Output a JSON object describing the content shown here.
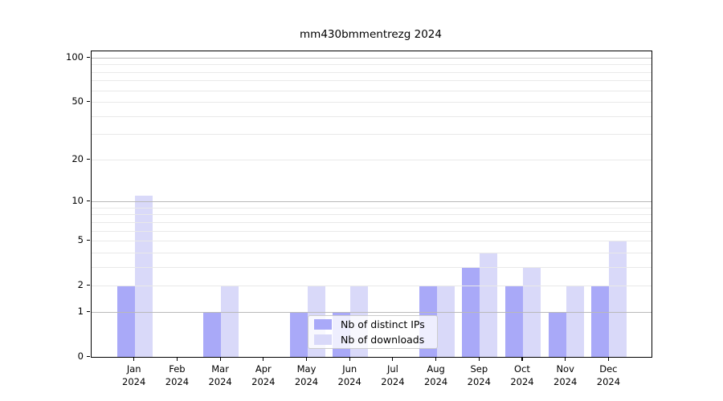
{
  "title": "mm430bmmentrezg 2024",
  "legend": {
    "items": [
      {
        "label": "Nb of distinct IPs",
        "color": "#a9a9f8"
      },
      {
        "label": "Nb of downloads",
        "color": "#d9d9f9"
      }
    ]
  },
  "y_axis": {
    "tick_values": [
      0,
      1,
      2,
      5,
      10,
      20,
      50,
      100
    ],
    "tick_labels": [
      "0",
      "1",
      "2",
      "5",
      "10",
      "20",
      "50",
      "100"
    ]
  },
  "x_axis": {
    "months": [
      "Jan",
      "Feb",
      "Mar",
      "Apr",
      "May",
      "Jun",
      "Jul",
      "Aug",
      "Sep",
      "Oct",
      "Nov",
      "Dec"
    ],
    "year": "2024"
  },
  "chart_data": {
    "type": "bar",
    "title": "mm430bmmentrezg 2024",
    "categories": [
      "Jan 2024",
      "Feb 2024",
      "Mar 2024",
      "Apr 2024",
      "May 2024",
      "Jun 2024",
      "Jul 2024",
      "Aug 2024",
      "Sep 2024",
      "Oct 2024",
      "Nov 2024",
      "Dec 2024"
    ],
    "series": [
      {
        "name": "Nb of distinct IPs",
        "color": "#a9a9f8",
        "values": [
          2,
          0,
          1,
          0,
          1,
          1,
          0,
          2,
          3,
          2,
          1,
          2
        ]
      },
      {
        "name": "Nb of downloads",
        "color": "#d9d9f9",
        "values": [
          11,
          0,
          2,
          0,
          2,
          2,
          0,
          2,
          4,
          3,
          2,
          5
        ]
      }
    ],
    "y_scale": "log10(1+x)",
    "y_ticks": [
      0,
      1,
      2,
      5,
      10,
      20,
      50,
      100
    ],
    "ylim": [
      0,
      112
    ],
    "grid": true,
    "decade_gridlines": [
      1,
      10,
      100
    ],
    "legend_position": "lower-center"
  },
  "colors": {
    "bar_distinct_ips": "#a9a9f8",
    "bar_downloads": "#d9d9f9",
    "grid_decade": "#b9b9b9",
    "grid_minor": "#e9e9e9",
    "axis": "#000000",
    "legend_border": "#cccccc"
  }
}
